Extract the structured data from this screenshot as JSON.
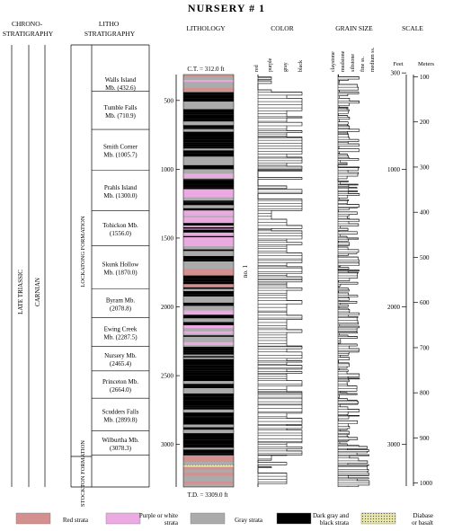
{
  "title": "NURSERY # 1",
  "headers": {
    "chrono": [
      "CHRONO-",
      "STRATIGRAPHY"
    ],
    "litho": [
      "LITHO",
      "STRATIGRAPHY"
    ],
    "lithology": "LITHOLOGY",
    "color": "COLOR",
    "grain_size": "GRAIN SIZE",
    "scale": "SCALE",
    "feet": "Feet",
    "meters": "Meters"
  },
  "chrono_labels": [
    "LATE TRIASSIC",
    "CARNIAN"
  ],
  "formations": [
    "LOCKATONG FORMATION",
    "STOCKTON FORMATION"
  ],
  "members": [
    {
      "name": "Walls Island",
      "line2": "Mb. (432.6)",
      "top": 312,
      "base": 432.6
    },
    {
      "name": "Tumble Falls",
      "line2": "Mb. (710.9)",
      "top": 432.6,
      "base": 710.9
    },
    {
      "name": "Smith Corner",
      "line2": "Mb. (1005.7)",
      "top": 710.9,
      "base": 1005.7
    },
    {
      "name": "Prahls Island",
      "line2": "Mb. (1300.0)",
      "top": 1005.7,
      "base": 1300.0
    },
    {
      "name": "Tohickon Mb.",
      "line2": "(1556.0)",
      "top": 1300.0,
      "base": 1556.0
    },
    {
      "name": "Skunk Hollow",
      "line2": "Mb. (1870.0)",
      "top": 1556.0,
      "base": 1870.0
    },
    {
      "name": "Byram Mb.",
      "line2": "(2078.8)",
      "top": 1870.0,
      "base": 2078.8
    },
    {
      "name": "Ewing Creek",
      "line2": "Mb. (2287.5)",
      "top": 2078.8,
      "base": 2287.5
    },
    {
      "name": "Nursery Mb.",
      "line2": "(2465.4)",
      "top": 2287.5,
      "base": 2465.4
    },
    {
      "name": "Princeton Mb.",
      "line2": "(2664.0)",
      "top": 2465.4,
      "base": 2664.0
    },
    {
      "name": "Scudders Falls",
      "line2": "Mb. (2899.8)",
      "top": 2664.0,
      "base": 2899.8
    },
    {
      "name": "Wilburtha Mb.",
      "line2": "(3078.3)",
      "top": 2899.8,
      "base": 3078.3
    }
  ],
  "ct_label": "C.T. = 312.0 ft",
  "td_label": "T.D. = 3309.0 ft",
  "unit_label": "no. 1",
  "depth_ticks": [
    500,
    1000,
    1500,
    2000,
    2500,
    3000
  ],
  "color_cols": [
    "red",
    "purple",
    "gray",
    "black"
  ],
  "grain_cols": [
    "claystone",
    "mudstone",
    "siltstone",
    "fine ss.",
    "medium ss."
  ],
  "scale_feet": [
    300,
    1000,
    2000,
    3000
  ],
  "scale_meters": [
    100,
    200,
    300,
    400,
    500,
    600,
    700,
    800,
    900,
    1000
  ],
  "legend": [
    {
      "label": "Red strata",
      "color": "#d4908e",
      "lines": [
        "Red strata"
      ]
    },
    {
      "label": "Purple or white strata",
      "color": "#ecaae2",
      "lines": [
        "Purple or white",
        "strata"
      ]
    },
    {
      "label": "Gray strata",
      "color": "#ababab",
      "lines": [
        "Gray strata"
      ]
    },
    {
      "label": "Dark gray and black strata",
      "color": "#000000",
      "lines": [
        "Dark gray and",
        "black strata"
      ]
    },
    {
      "label": "Diabase or basalt",
      "color": "#e8e6a8",
      "lines": [
        "Diabase",
        "or basalt"
      ]
    }
  ],
  "colors": {
    "red": "#d4908e",
    "purple": "#ecaae2",
    "gray": "#ababab",
    "black": "#000000",
    "diabase": "#e8e6a8"
  }
}
